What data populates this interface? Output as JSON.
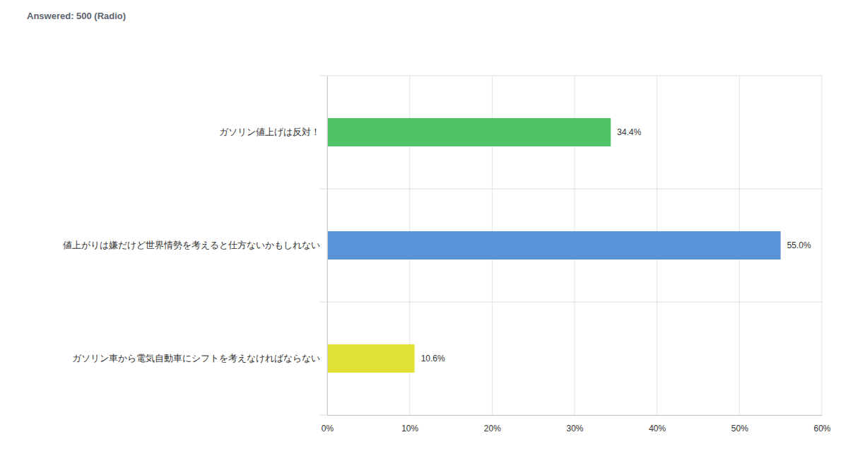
{
  "chart_data": {
    "type": "bar",
    "orientation": "horizontal",
    "title": "Answered: 500 (Radio)",
    "categories": [
      "ガソリン値上げは反対！",
      "値上がりは嫌だけど世界情勢を考えると仕方ないかもしれない",
      "ガソリン車から電気自動車にシフトを考えなければならない"
    ],
    "values": [
      34.4,
      55.0,
      10.6
    ],
    "value_labels": [
      "34.4%",
      "55.0%",
      "10.6%"
    ],
    "colors": [
      "#4fc467",
      "#5b93d9",
      "#e0e336"
    ],
    "xlim": [
      0,
      60
    ],
    "xticks": [
      {
        "value": 0,
        "label": "0%"
      },
      {
        "value": 10,
        "label": "10%"
      },
      {
        "value": 20,
        "label": "20%"
      },
      {
        "value": 30,
        "label": "30%"
      },
      {
        "value": 40,
        "label": "40%"
      },
      {
        "value": 50,
        "label": "50%"
      },
      {
        "value": 60,
        "label": "60%"
      }
    ],
    "grid": true,
    "data_labels": true
  }
}
